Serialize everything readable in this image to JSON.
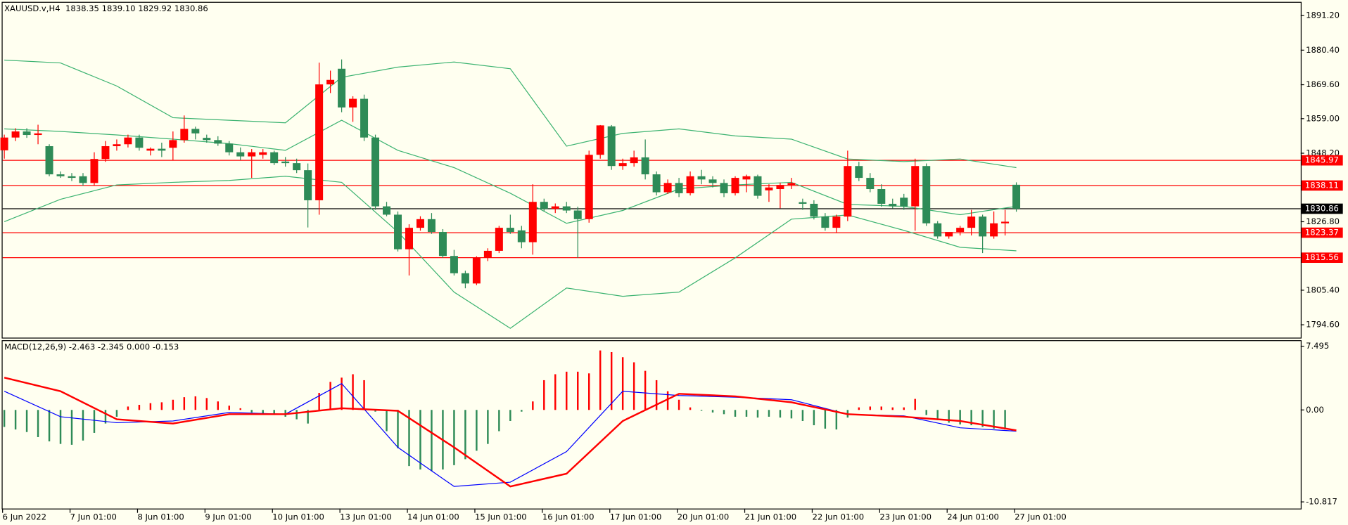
{
  "chart_data": [
    {
      "type": "candlestick",
      "title": "XAUUSD.v,H4  1838.35 1839.10 1829.92 1830.86",
      "categories": [
        "6 Jun 2022",
        null,
        null,
        null,
        null,
        null,
        "7 Jun 01:00",
        null,
        null,
        null,
        null,
        null,
        "8 Jun 01:00",
        null,
        null,
        null,
        null,
        null,
        "9 Jun 01:00",
        null,
        null,
        null,
        null,
        null,
        "10 Jun 01:00",
        null,
        null,
        null,
        null,
        null,
        "13 Jun 01:00",
        null,
        null,
        null,
        null,
        null,
        "14 Jun 01:00",
        null,
        null,
        null,
        null,
        null,
        "15 Jun 01:00",
        null,
        null,
        null,
        null,
        null,
        "16 Jun 01:00",
        null,
        null,
        null,
        null,
        null,
        "17 Jun 01:00",
        null,
        null,
        null,
        null,
        null,
        "20 Jun 01:00",
        null,
        null,
        null,
        null,
        null,
        "21 Jun 01:00",
        null,
        null,
        null,
        null,
        null,
        "22 Jun 01:00",
        null,
        null,
        null,
        null,
        null,
        "23 Jun 01:00",
        null,
        null,
        null,
        null,
        null,
        "24 Jun 01:00",
        null,
        null,
        null,
        null,
        null,
        "27 Jun 01:00"
      ],
      "open": [
        1849.1,
        1853.1,
        1855.0,
        1853.9,
        1850.4,
        1841.6,
        1841.0,
        1841.0,
        1838.9,
        1846.4,
        1850.4,
        1851.0,
        1853.1,
        1849.0,
        1849.6,
        1849.9,
        1852.3,
        1855.8,
        1853.0,
        1852.3,
        1851.2,
        1848.5,
        1847.2,
        1847.7,
        1848.5,
        1845.6,
        1845.1,
        1842.9,
        1833.5,
        1869.7,
        1874.6,
        1862.5,
        1865.2,
        1853.1,
        1831.6,
        1829.0,
        1818.2,
        1824.9,
        1827.6,
        1823.6,
        1816.1,
        1810.7,
        1807.5,
        1815.5,
        1817.7,
        1824.9,
        1824.1,
        1820.4,
        1833.0,
        1830.8,
        1831.6,
        1830.3,
        1827.6,
        1847.7,
        1856.6,
        1844.2,
        1845.1,
        1846.9,
        1841.6,
        1836.0,
        1838.9,
        1835.7,
        1841.0,
        1840.0,
        1838.9,
        1835.7,
        1840.0,
        1841.0,
        1836.6,
        1837.0,
        1838.3,
        1832.9,
        1832.4,
        1828.4,
        1824.9,
        1828.4,
        1844.2,
        1840.5,
        1837.0,
        1832.4,
        1834.3,
        1831.6,
        1844.2,
        1826.3,
        1822.2,
        1823.6,
        1824.9,
        1828.4,
        1822.2,
        1826.3,
        1838.35
      ],
      "high": [
        1854.0,
        1856.0,
        1856.0,
        1857.1,
        1851.0,
        1842.5,
        1842.0,
        1842.0,
        1848.5,
        1852.0,
        1852.5,
        1854.0,
        1854.0,
        1850.0,
        1851.5,
        1855.0,
        1860.0,
        1856.5,
        1854.0,
        1853.5,
        1852.0,
        1850.0,
        1849.5,
        1849.5,
        1849.0,
        1847.0,
        1846.5,
        1845.0,
        1876.5,
        1874.0,
        1877.5,
        1866.0,
        1866.5,
        1854.0,
        1833.0,
        1830.0,
        1826.0,
        1828.5,
        1829.5,
        1824.5,
        1818.0,
        1811.5,
        1816.0,
        1818.5,
        1825.5,
        1829.0,
        1825.5,
        1838.5,
        1834.0,
        1832.5,
        1833.0,
        1831.5,
        1849.0,
        1857.0,
        1857.0,
        1846.5,
        1849.0,
        1852.5,
        1842.5,
        1840.0,
        1840.5,
        1842.5,
        1843.0,
        1841.0,
        1840.0,
        1841.0,
        1841.5,
        1841.5,
        1838.5,
        1839.0,
        1840.5,
        1834.0,
        1833.5,
        1829.5,
        1829.0,
        1849.0,
        1845.5,
        1842.0,
        1838.5,
        1834.0,
        1835.5,
        1846.5,
        1845.0,
        1827.0,
        1823.5,
        1825.5,
        1830.5,
        1829.0,
        1830.0,
        1830.5,
        1839.1
      ],
      "low": [
        1846.5,
        1852.0,
        1853.0,
        1851.0,
        1841.0,
        1840.5,
        1839.5,
        1838.0,
        1838.0,
        1845.5,
        1849.0,
        1850.0,
        1849.0,
        1847.5,
        1847.0,
        1846.0,
        1851.5,
        1852.5,
        1851.5,
        1850.5,
        1847.5,
        1846.0,
        1840.5,
        1846.5,
        1844.5,
        1844.0,
        1842.0,
        1825.0,
        1829.0,
        1867.0,
        1861.0,
        1858.0,
        1852.0,
        1830.5,
        1828.5,
        1817.5,
        1810.0,
        1824.0,
        1823.0,
        1815.5,
        1810.0,
        1806.0,
        1807.0,
        1814.5,
        1817.0,
        1823.0,
        1818.5,
        1816.5,
        1830.0,
        1829.5,
        1829.5,
        1815.5,
        1826.5,
        1846.5,
        1843.0,
        1843.0,
        1844.0,
        1840.0,
        1835.0,
        1835.5,
        1834.5,
        1835.0,
        1838.5,
        1837.5,
        1834.5,
        1835.0,
        1836.0,
        1834.0,
        1833.0,
        1831.0,
        1837.0,
        1830.5,
        1827.5,
        1824.0,
        1823.5,
        1827.0,
        1839.5,
        1836.0,
        1831.5,
        1831.0,
        1830.5,
        1824.0,
        1825.5,
        1821.5,
        1821.5,
        1822.5,
        1822.5,
        1817.0,
        1821.5,
        1822.5,
        1829.92
      ],
      "close": [
        1853.1,
        1855.0,
        1853.9,
        1854.4,
        1841.6,
        1841.0,
        1840.5,
        1838.9,
        1846.4,
        1850.4,
        1851.0,
        1853.1,
        1849.9,
        1849.6,
        1849.0,
        1852.3,
        1855.8,
        1854.4,
        1852.3,
        1851.2,
        1848.5,
        1847.2,
        1848.5,
        1848.5,
        1845.1,
        1845.1,
        1842.9,
        1833.5,
        1869.7,
        1871.1,
        1862.5,
        1865.2,
        1853.1,
        1831.6,
        1829.0,
        1818.2,
        1824.9,
        1827.6,
        1823.6,
        1816.1,
        1810.7,
        1807.5,
        1815.5,
        1817.7,
        1824.9,
        1823.6,
        1820.4,
        1833.0,
        1830.8,
        1831.6,
        1830.3,
        1827.6,
        1847.7,
        1856.9,
        1844.2,
        1845.1,
        1846.9,
        1841.6,
        1836.0,
        1838.9,
        1835.7,
        1841.0,
        1840.0,
        1838.9,
        1835.7,
        1840.5,
        1841.0,
        1834.9,
        1837.5,
        1838.3,
        1838.9,
        1832.4,
        1828.4,
        1824.9,
        1828.4,
        1844.2,
        1840.5,
        1837.0,
        1832.4,
        1831.6,
        1831.6,
        1844.2,
        1826.3,
        1822.2,
        1823.6,
        1824.9,
        1828.4,
        1822.2,
        1826.3,
        1826.8,
        1830.86
      ],
      "up_color": "#ff0000",
      "down_color": "#2e8b57",
      "bands": {
        "color": "#3cb371",
        "x": [
          0,
          5,
          10,
          15,
          20,
          25,
          30,
          35,
          40,
          45,
          50,
          55,
          60,
          65,
          70,
          75,
          80,
          85,
          90
        ],
        "upper": [
          1877.3,
          1876.4,
          1869.2,
          1859.3,
          1858.5,
          1857.7,
          1871.9,
          1875.1,
          1876.7,
          1874.6,
          1850.4,
          1854.4,
          1855.8,
          1853.6,
          1852.6,
          1846.4,
          1845.6,
          1846.4,
          1843.7
        ],
        "middle": [
          1855.8,
          1855.0,
          1853.9,
          1852.6,
          1851.2,
          1849.1,
          1858.5,
          1849.1,
          1843.7,
          1835.7,
          1826.3,
          1830.3,
          1837.0,
          1838.3,
          1839.1,
          1832.2,
          1831.6,
          1829.0,
          1831.6
        ],
        "lower": [
          1826.8,
          1833.8,
          1838.3,
          1839.1,
          1839.7,
          1841.0,
          1839.1,
          1823.6,
          1804.8,
          1793.5,
          1806.1,
          1803.5,
          1804.8,
          1815.5,
          1827.6,
          1828.9,
          1824.1,
          1818.8,
          1817.7
        ]
      },
      "levels": [
        1845.97,
        1838.11,
        1823.37,
        1815.56
      ],
      "level_color": "#ff0000",
      "current": 1830.86,
      "ylim": [
        1790.58,
        1895.22
      ],
      "yticks": [
        {
          "value": 1891.2,
          "label": "1891.20"
        },
        {
          "value": 1880.4,
          "label": "1880.40"
        },
        {
          "value": 1869.6,
          "label": "1869.60"
        },
        {
          "value": 1859.0,
          "label": "1859.00"
        },
        {
          "value": 1848.2,
          "label": "1848.20"
        },
        {
          "value": 1826.8,
          "label": "1826.80"
        },
        {
          "value": 1805.4,
          "label": "1805.40"
        },
        {
          "value": 1794.6,
          "label": "1794.60"
        }
      ]
    },
    {
      "type": "macd",
      "title": "MACD(12,26,9) -2.463 -2.345 0.000 -0.153",
      "values": [
        -2.0,
        -2.3,
        -2.6,
        -3.2,
        -3.7,
        -4.0,
        -4.1,
        -3.6,
        -2.7,
        -1.6,
        -0.8,
        0.4,
        0.6,
        0.8,
        0.9,
        1.2,
        1.5,
        1.6,
        1.4,
        1.0,
        0.5,
        0.2,
        -0.3,
        -0.5,
        -0.6,
        -0.8,
        -1.1,
        -1.6,
        2.0,
        3.3,
        3.8,
        4.2,
        3.5,
        -0.2,
        -2.5,
        -4.5,
        -6.6,
        -7.0,
        -7.2,
        -7.0,
        -6.5,
        -5.8,
        -4.8,
        -4.0,
        -2.5,
        -1.3,
        -0.2,
        1.0,
        3.5,
        4.2,
        4.5,
        4.5,
        4.3,
        7.0,
        6.8,
        6.2,
        5.6,
        4.6,
        3.5,
        2.2,
        1.2,
        0.3,
        -0.1,
        -0.3,
        -0.5,
        -0.8,
        -0.8,
        -0.9,
        -0.8,
        -0.9,
        -1.0,
        -1.3,
        -1.8,
        -2.2,
        -2.3,
        -0.9,
        0.3,
        0.4,
        0.4,
        0.3,
        0.3,
        1.3,
        -0.6,
        -1.2,
        -1.5,
        -1.7,
        -1.8,
        -2.0,
        -2.2,
        -2.3,
        0.0
      ],
      "up_color": "#ff0000",
      "down_color": "#2e8b57",
      "lines": [
        {
          "color": "#0000ff",
          "x": [
            0,
            5,
            10,
            15,
            20,
            25,
            30,
            35,
            40,
            45,
            50,
            55,
            60,
            65,
            70,
            75,
            80,
            85,
            90
          ],
          "values": [
            2.2,
            -0.8,
            -1.5,
            -1.3,
            -0.3,
            -0.5,
            3.1,
            -4.4,
            -9.0,
            -8.5,
            -4.9,
            2.2,
            1.7,
            1.5,
            1.2,
            -0.5,
            -0.7,
            -2.1,
            -2.5
          ]
        },
        {
          "color": "#ff0000",
          "x": [
            0,
            5,
            10,
            15,
            20,
            25,
            30,
            35,
            40,
            45,
            50,
            55,
            60,
            65,
            70,
            75,
            80,
            85,
            90
          ],
          "values": [
            3.8,
            2.2,
            -1.1,
            -1.6,
            -0.5,
            -0.5,
            0.2,
            -0.1,
            -4.4,
            -9.0,
            -7.5,
            -1.3,
            1.9,
            1.6,
            0.9,
            -0.5,
            -0.8,
            -1.3,
            -2.4
          ]
        }
      ],
      "ylim": [
        -11.6,
        8.1
      ],
      "yticks": [
        7.495,
        {
          "value": 0,
          "label": "0.00"
        },
        -10.817
      ]
    }
  ]
}
